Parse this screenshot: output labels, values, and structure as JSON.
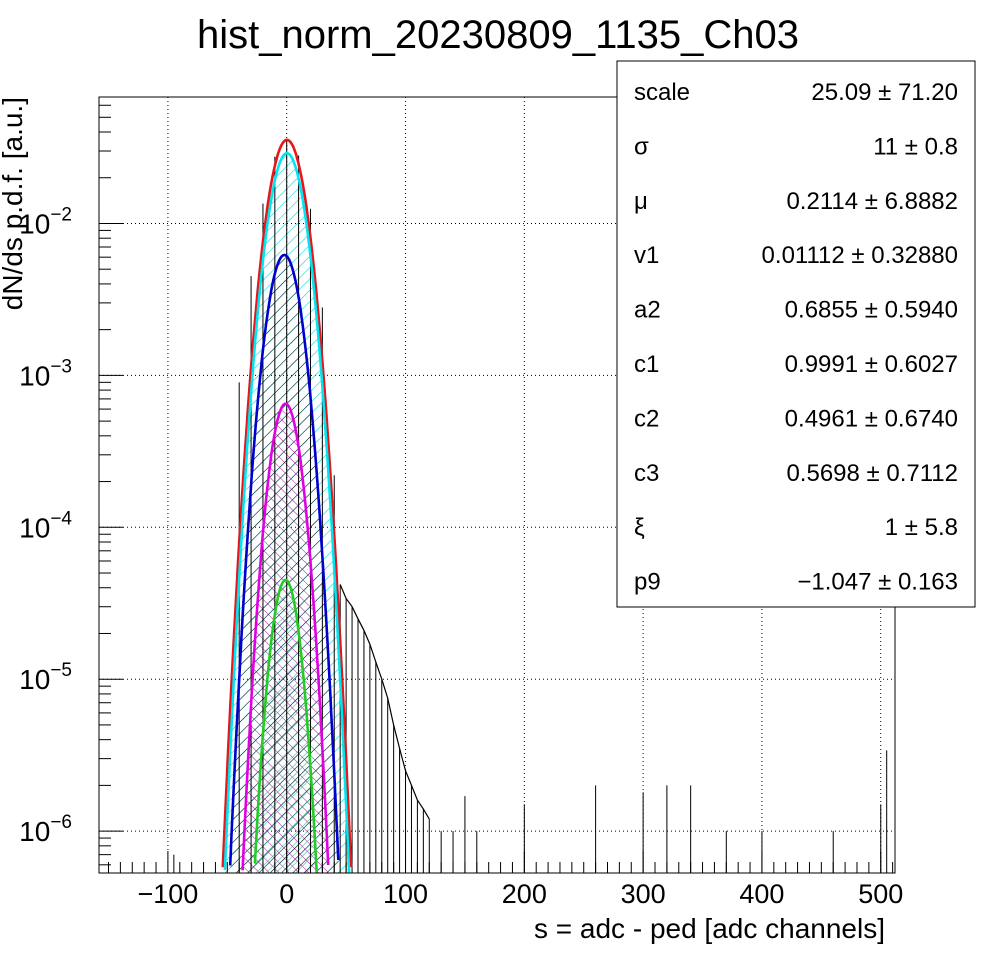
{
  "chart_data": {
    "type": "line",
    "title": "hist_norm_20230809_1135_Ch03",
    "xlabel": "s = adc - ped [adc channels]",
    "ylabel": "dN/ds p.d.f. [a.u.]",
    "xlim": [
      -158,
      512
    ],
    "ylim": [
      5.3e-07,
      0.068
    ],
    "yscale": "log",
    "grid": true,
    "x_ticks": [
      -100,
      0,
      100,
      200,
      300,
      400,
      500
    ],
    "x_tick_labels": [
      "−100",
      "0",
      "100",
      "200",
      "300",
      "400",
      "500"
    ],
    "y_ticks": [
      {
        "value": 1e-06,
        "base": "10",
        "exp": "−6"
      },
      {
        "value": 1e-05,
        "base": "10",
        "exp": "−5"
      },
      {
        "value": 0.0001,
        "base": "10",
        "exp": "−4"
      },
      {
        "value": 0.001,
        "base": "10",
        "exp": "−3"
      },
      {
        "value": 0.01,
        "base": "10",
        "exp": "−2"
      }
    ],
    "series": [
      {
        "color": "#000000",
        "kind": "histogram",
        "x": [
          -95,
          -40,
          -30,
          -20,
          -10,
          0,
          10,
          20,
          30,
          40,
          45,
          50,
          55,
          60,
          65,
          70,
          75,
          80,
          85,
          90,
          95,
          100,
          105,
          110,
          115,
          120,
          130,
          140,
          150,
          160,
          200,
          260,
          300,
          320,
          340,
          370,
          400,
          460,
          500,
          505
        ],
        "y": [
          7e-07,
          0.0009,
          0.0045,
          0.0135,
          0.0275,
          0.035,
          0.028,
          0.0125,
          0.0028,
          0.00022,
          4.2e-05,
          3.4e-05,
          3e-05,
          2.5e-05,
          2.1e-05,
          1.7e-05,
          1.3e-05,
          1e-05,
          7.5e-06,
          5e-06,
          3.5e-06,
          2.5e-06,
          2e-06,
          1.6e-06,
          1.4e-06,
          1.2e-06,
          1e-06,
          1e-06,
          1.7e-06,
          1e-06,
          1.5e-06,
          2e-06,
          1.8e-06,
          2e-06,
          2e-06,
          1e-06,
          1e-06,
          1e-06,
          1.5e-06,
          3.4e-06
        ]
      },
      {
        "color": "#e8161b",
        "kind": "gaussian",
        "mu": 0.2,
        "sigma": 11.5,
        "peak": 0.0355
      },
      {
        "color": "#00e5ef",
        "kind": "gaussian",
        "mu": 0.2,
        "sigma": 11.2,
        "peak": 0.029
      },
      {
        "color": "#0000cc",
        "kind": "gaussian",
        "mu": -2,
        "sigma": 10.6,
        "peak": 0.0062
      },
      {
        "color": "#e100e1",
        "kind": "gaussian",
        "mu": -1,
        "sigma": 9.6,
        "peak": 0.00065
      },
      {
        "color": "#22cc22",
        "kind": "gaussian",
        "mu": -1,
        "sigma": 8.8,
        "peak": 4.5e-05
      }
    ]
  },
  "stats": {
    "rows": [
      {
        "name": "scale",
        "value": "25.09 ± 71.20"
      },
      {
        "name": "σ",
        "value": "11 ± 0.8"
      },
      {
        "name": "μ",
        "value": "0.2114 ± 6.8882"
      },
      {
        "name": "v1",
        "value": "0.01112 ± 0.32880"
      },
      {
        "name": "a2",
        "value": "0.6855 ± 0.5940"
      },
      {
        "name": "c1",
        "value": "0.9991 ± 0.6027"
      },
      {
        "name": "c2",
        "value": "0.4961 ± 0.6740"
      },
      {
        "name": "c3",
        "value": "0.5698 ± 0.7112"
      },
      {
        "name": "ξ",
        "value": "1 ± 5.8"
      },
      {
        "name": "p9",
        "value": "−1.047 ± 0.163"
      }
    ]
  }
}
